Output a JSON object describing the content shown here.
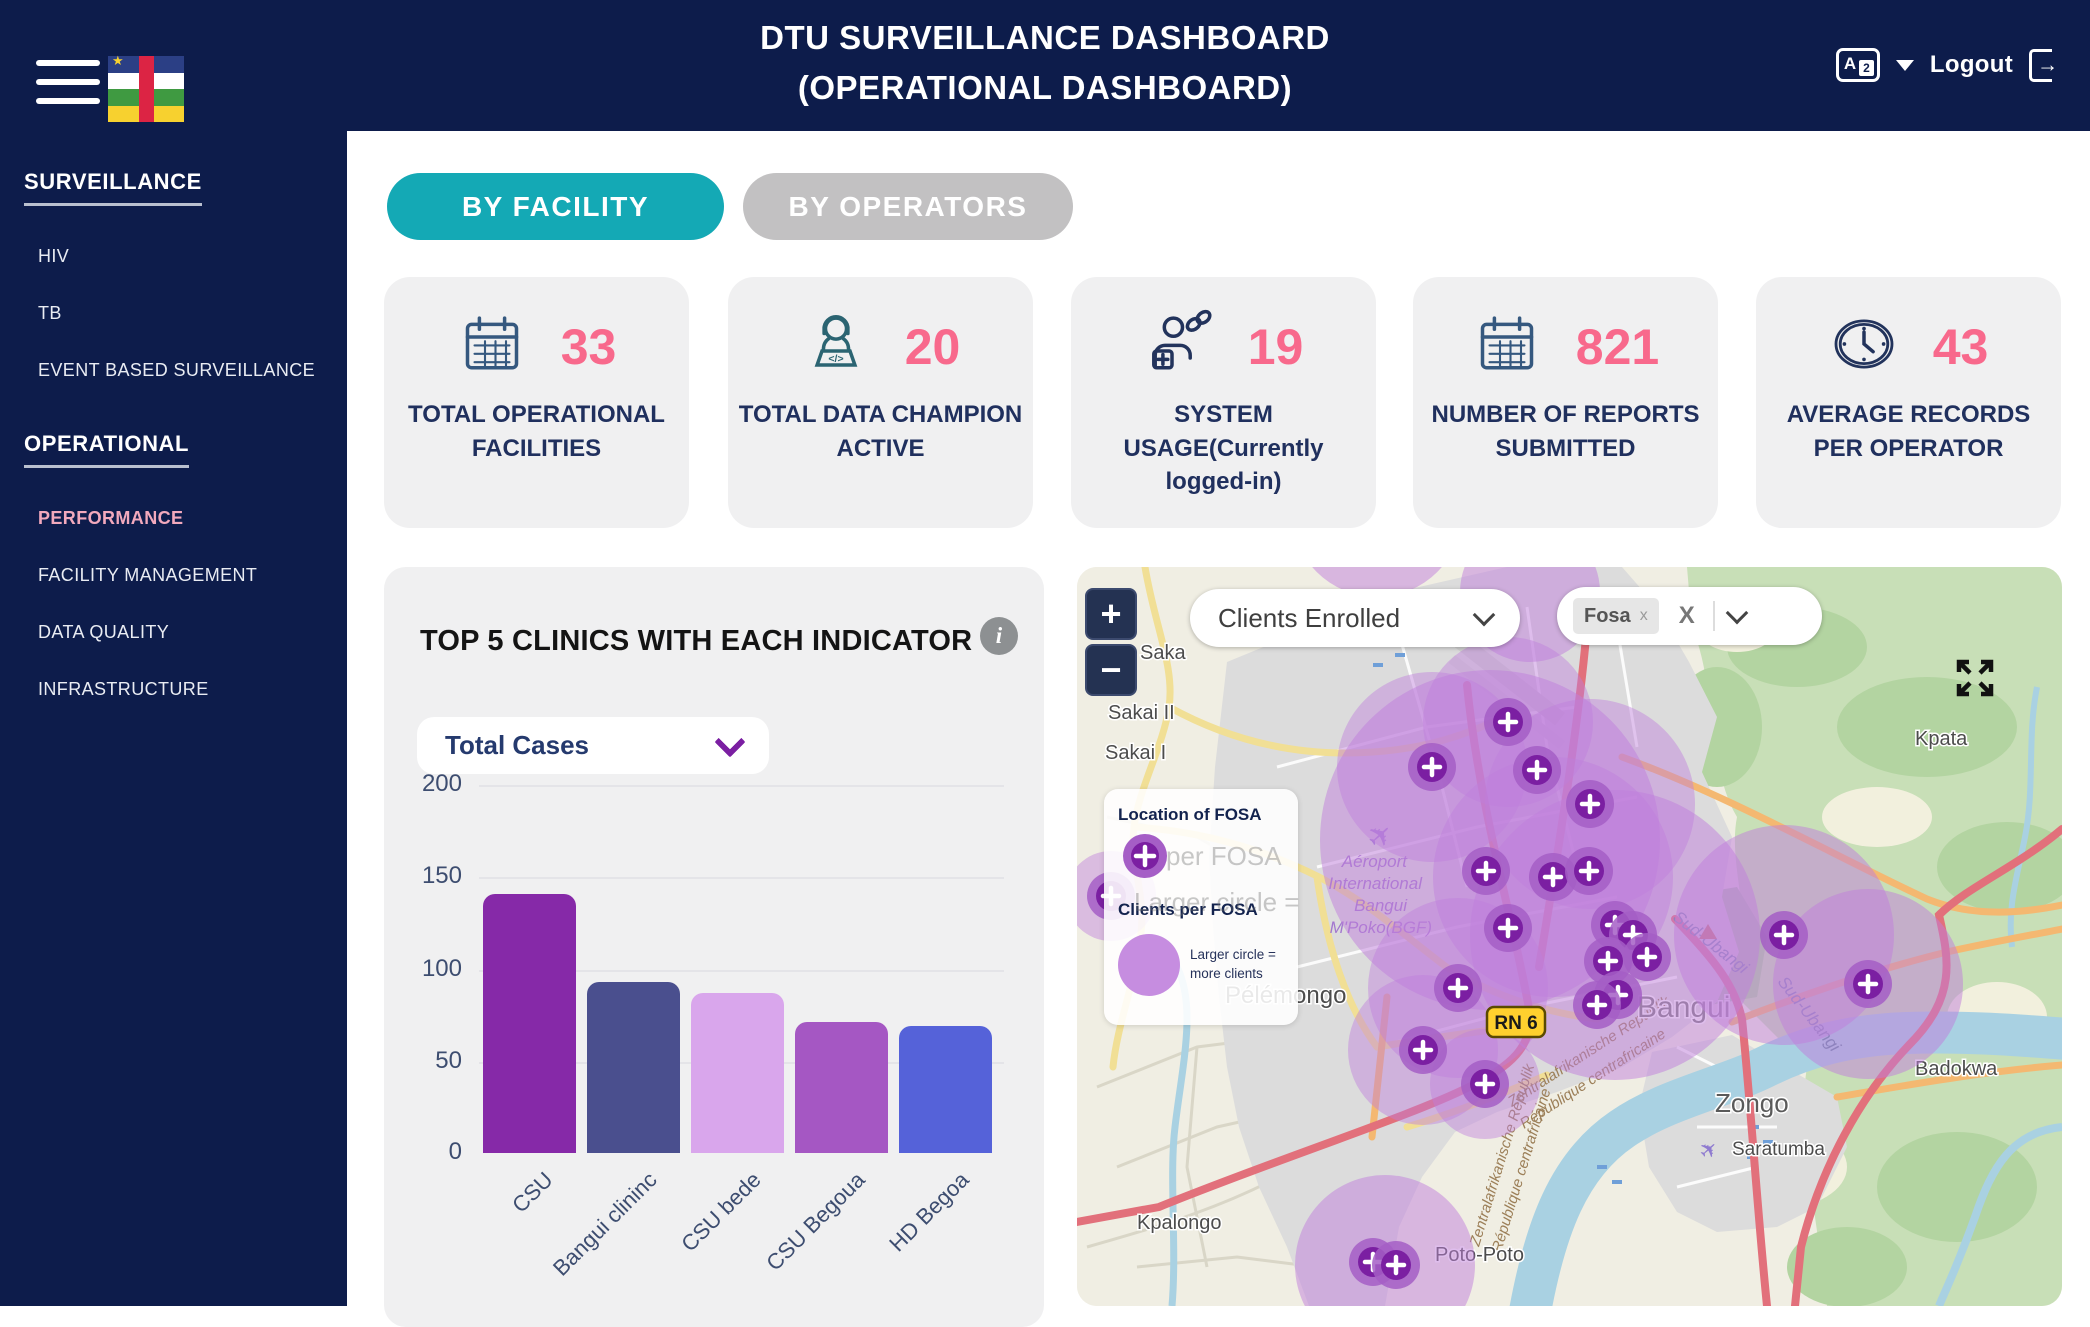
{
  "header": {
    "title_line1": "DTU SURVEILLANCE DASHBOARD",
    "title_line2": "(OPERATIONAL DASHBOARD)",
    "logout_label": "Logout",
    "translate_letter": "A",
    "translate_sub": "2"
  },
  "sidebar": {
    "sections": [
      {
        "heading": "SURVEILLANCE",
        "items": [
          {
            "label": "HIV"
          },
          {
            "label": "TB"
          },
          {
            "label": "EVENT BASED SURVEILLANCE"
          }
        ]
      },
      {
        "heading": "OPERATIONAL",
        "items": [
          {
            "label": "PERFORMANCE"
          },
          {
            "label": "FACILITY MANAGEMENT"
          },
          {
            "label": "DATA QUALITY"
          },
          {
            "label": "INFRASTRUCTURE"
          }
        ]
      }
    ]
  },
  "tabs": {
    "facility": "BY FACILITY",
    "operators": "BY OPERATORS"
  },
  "stats": [
    {
      "value": "33",
      "label": "TOTAL OPERATIONAL FACILITIES",
      "icon": "calendar-icon"
    },
    {
      "value": "20",
      "label": "TOTAL DATA CHAMPION ACTIVE",
      "icon": "data-champion-icon"
    },
    {
      "value": "19",
      "label": "SYSTEM USAGE(Currently logged-in)",
      "icon": "user-link-icon"
    },
    {
      "value": "821",
      "label": "NUMBER OF REPORTS SUBMITTED",
      "icon": "calendar-icon"
    },
    {
      "value": "43",
      "label": "AVERAGE RECORDS PER OPERATOR",
      "icon": "clock-icon"
    }
  ],
  "chart_panel": {
    "title": "TOP 5 CLINICS WITH EACH INDICATOR",
    "dropdown_value": "Total Cases",
    "info_glyph": "i"
  },
  "chart_data": {
    "type": "bar",
    "title": "TOP 5 CLINICS WITH EACH INDICATOR",
    "selected_indicator": "Total Cases",
    "categories": [
      "CSU",
      "Bangui clininc",
      "CSU bede",
      "CSU Begoua",
      "HD Begoa"
    ],
    "values": [
      141,
      93,
      87,
      71,
      69
    ],
    "colors": [
      "#8629a8",
      "#4a4f8e",
      "#d9a6ec",
      "#a557c3",
      "#5562d9"
    ],
    "ylim": [
      0,
      200
    ],
    "yticks": [
      "200",
      "150",
      "100",
      "50",
      "0"
    ],
    "grid": true,
    "xlabel": "",
    "ylabel": "",
    "legend_position": "none"
  },
  "map": {
    "zoom_in": "+",
    "zoom_out": "−",
    "layer_select": {
      "value": "Clients Enrolled"
    },
    "filter": {
      "chip": "Fosa",
      "chip_remove": "x",
      "clear": "X"
    },
    "legend": {
      "location_title": "Location of FOSA",
      "clients_title": "Clients per FOSA",
      "note_line1": "Larger circle =",
      "note_line2": "more clients",
      "ghost_line1": "per FOSA",
      "ghost_line2": "Larger circle ="
    },
    "labels": {
      "saka": "Saka",
      "sakai_ii": "Sakai II",
      "sakai_i": "Sakai I",
      "kpata": "Kpata",
      "pelemongo": "Pélémongo",
      "bangui": "Bangui",
      "zongo": "Zongo",
      "badokwa": "Badokwa",
      "saratumba": "Saratumba",
      "kpalongo": "Kpalongo",
      "poto_poto": "Poto-Poto",
      "river": "Sud-Ubangi",
      "border_de": "Zentralafrikanische Republik",
      "border_fr": "République centrafricaine",
      "road_badge": "RN 6",
      "airport": [
        "Aéroport",
        "International",
        "Bangui",
        "M'Poko(BGF)"
      ]
    }
  }
}
